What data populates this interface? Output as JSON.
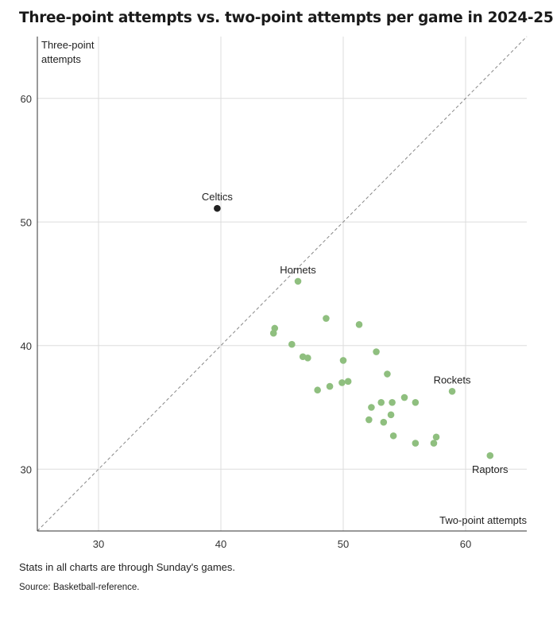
{
  "chart_data": {
    "type": "scatter",
    "title": "Three-point attempts vs. two-point attempts per game in 2024-25",
    "xlabel": "Two-point attempts",
    "ylabel_lines": [
      "Three-point",
      "attempts"
    ],
    "xlim": [
      25,
      65
    ],
    "ylim": [
      25,
      65
    ],
    "xticks": [
      30,
      40,
      50,
      60
    ],
    "yticks": [
      30,
      40,
      50,
      60
    ],
    "grid": true,
    "reference_line": "y = x (dashed)",
    "colors": {
      "highlight": "#222222",
      "points": "#8fbf7f",
      "grid": "#dddddd",
      "axis": "#333333",
      "diagonal": "#888888"
    },
    "points": [
      {
        "x": 39.7,
        "y": 51.1,
        "label": "Celtics",
        "highlight": true
      },
      {
        "x": 46.3,
        "y": 45.2,
        "label": "Hornets"
      },
      {
        "x": 58.9,
        "y": 36.3,
        "label": "Rockets"
      },
      {
        "x": 62.0,
        "y": 31.1,
        "label": "Raptors"
      },
      {
        "x": 48.6,
        "y": 42.2
      },
      {
        "x": 51.3,
        "y": 41.7
      },
      {
        "x": 44.4,
        "y": 41.4
      },
      {
        "x": 44.3,
        "y": 41.0
      },
      {
        "x": 45.8,
        "y": 40.1
      },
      {
        "x": 52.7,
        "y": 39.5
      },
      {
        "x": 46.7,
        "y": 39.1
      },
      {
        "x": 47.1,
        "y": 39.0
      },
      {
        "x": 50.0,
        "y": 38.8
      },
      {
        "x": 53.6,
        "y": 37.7
      },
      {
        "x": 49.9,
        "y": 37.0
      },
      {
        "x": 50.4,
        "y": 37.1
      },
      {
        "x": 48.9,
        "y": 36.7
      },
      {
        "x": 47.9,
        "y": 36.4
      },
      {
        "x": 55.0,
        "y": 35.8
      },
      {
        "x": 53.1,
        "y": 35.4
      },
      {
        "x": 54.0,
        "y": 35.4
      },
      {
        "x": 55.9,
        "y": 35.4
      },
      {
        "x": 52.3,
        "y": 35.0
      },
      {
        "x": 53.9,
        "y": 34.4
      },
      {
        "x": 52.1,
        "y": 34.0
      },
      {
        "x": 53.3,
        "y": 33.8
      },
      {
        "x": 54.1,
        "y": 32.7
      },
      {
        "x": 57.6,
        "y": 32.6
      },
      {
        "x": 55.9,
        "y": 32.1
      },
      {
        "x": 57.4,
        "y": 32.1
      }
    ]
  },
  "footer": {
    "note": "Stats in all charts are through Sunday's games.",
    "source": "Source: Basketball-reference."
  }
}
